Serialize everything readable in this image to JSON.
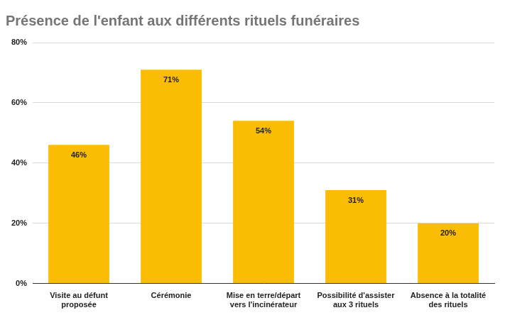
{
  "chart_data": {
    "type": "bar",
    "title": "Présence de l'enfant aux différents rituels funéraires",
    "categories": [
      "Visite au défunt proposée",
      "Cérémonie",
      "Mise en terre/départ vers l'incinérateur",
      "Possibilité d'assister aux 3 rituels",
      "Absence à la totalité des rituels"
    ],
    "values": [
      46,
      71,
      54,
      31,
      20
    ],
    "value_labels": [
      "46%",
      "71%",
      "54%",
      "31%",
      "20%"
    ],
    "color": "#fbbc04",
    "ylim": [
      0,
      80
    ],
    "yticks": [
      {
        "value": 0,
        "label": "0%"
      },
      {
        "value": 20,
        "label": "20%"
      },
      {
        "value": 40,
        "label": "40%"
      },
      {
        "value": 60,
        "label": "60%"
      },
      {
        "value": 80,
        "label": "80%"
      }
    ],
    "grid": true,
    "data_labels": true
  }
}
